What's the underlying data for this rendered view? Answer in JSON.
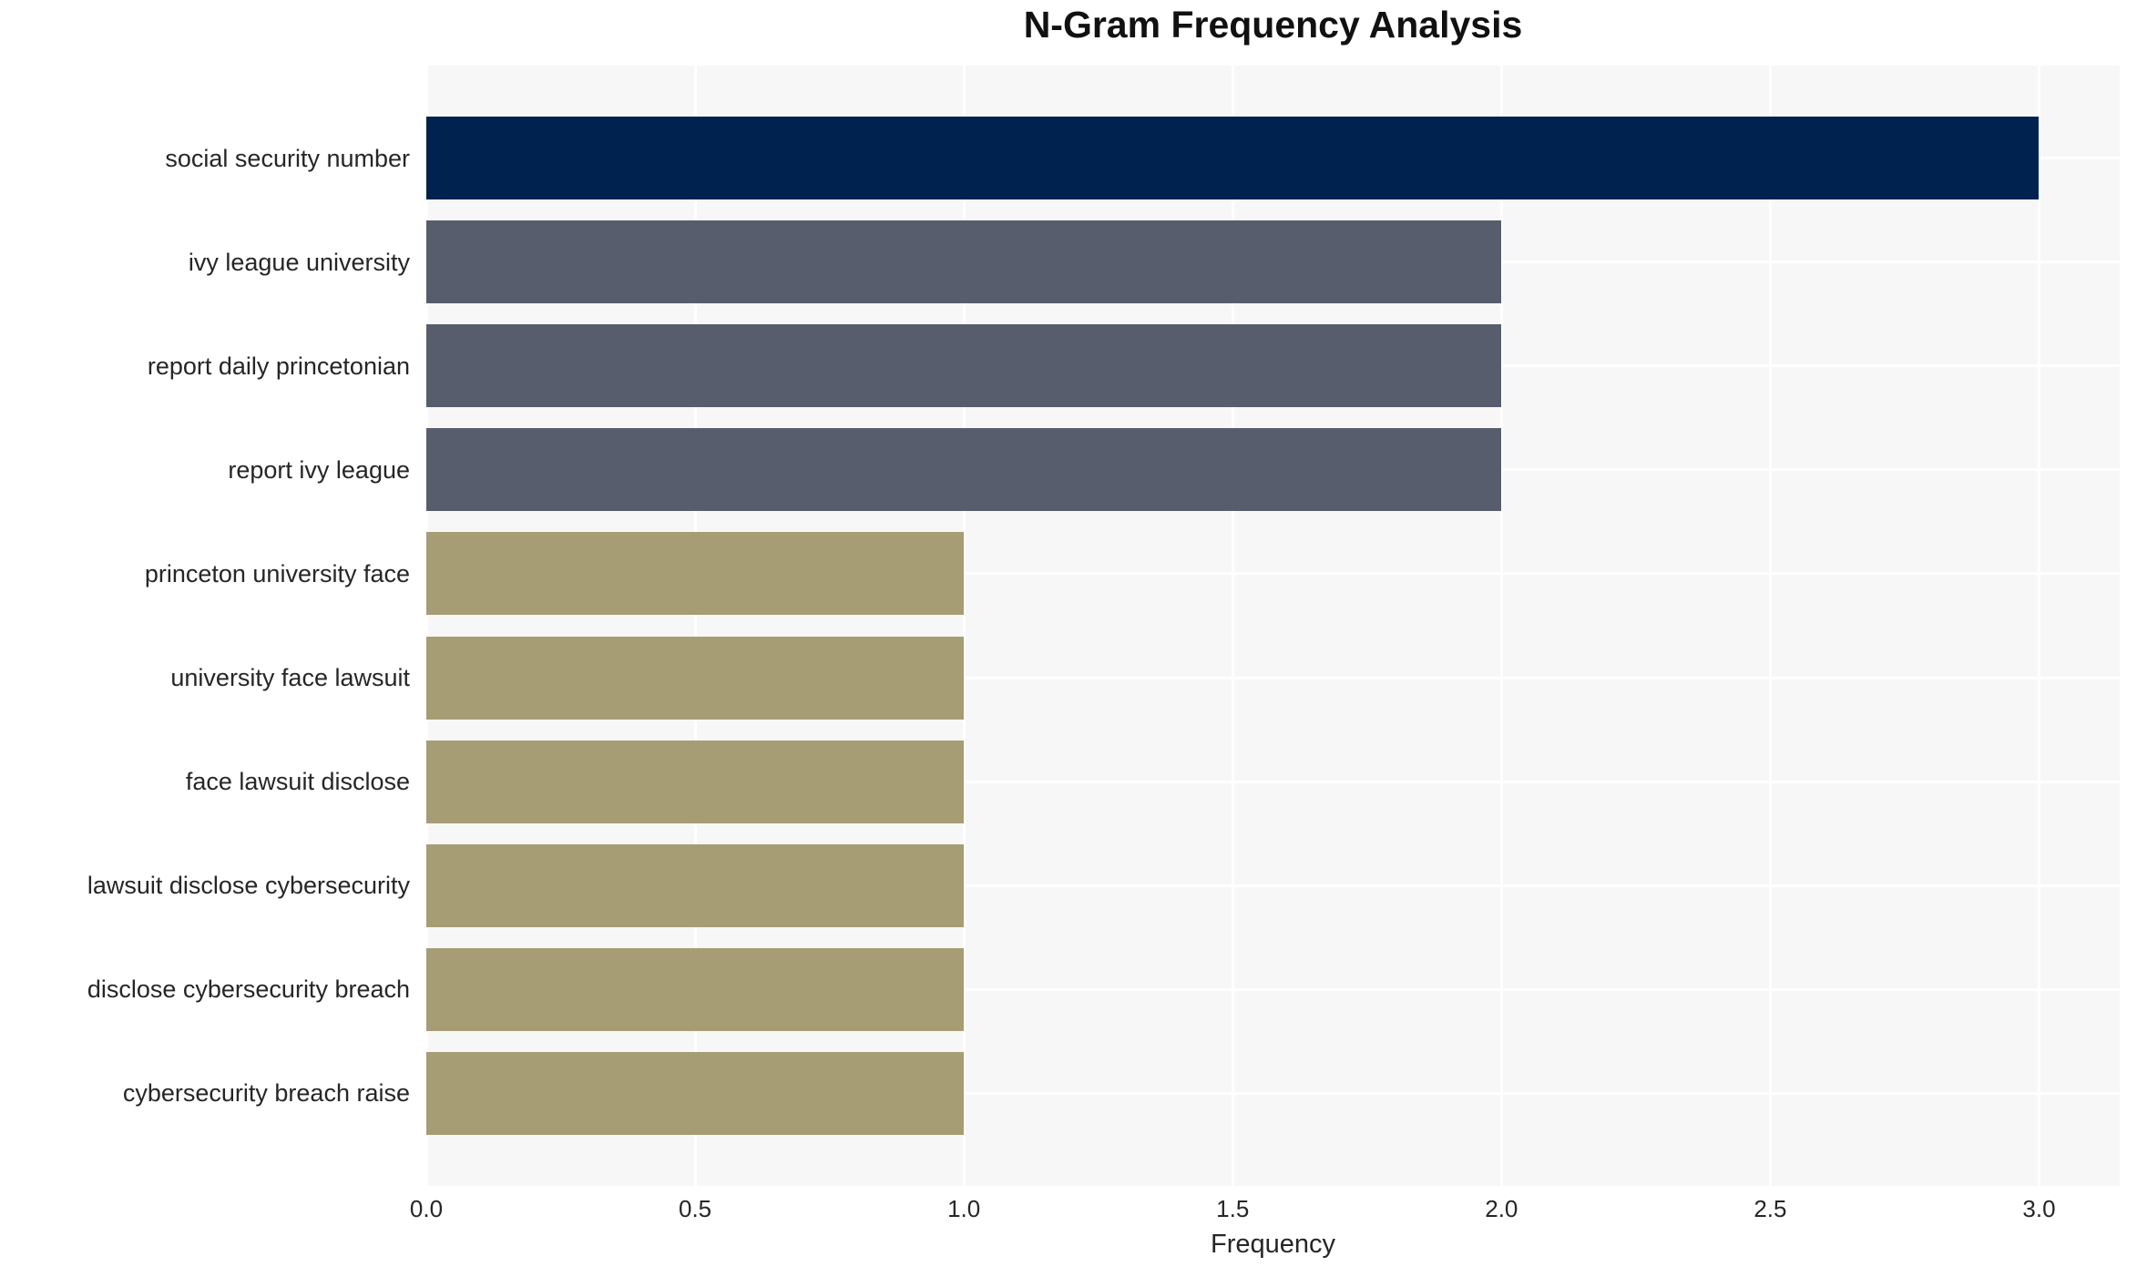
{
  "chart_data": {
    "type": "bar",
    "orientation": "horizontal",
    "title": "N-Gram Frequency Analysis",
    "xlabel": "Frequency",
    "ylabel": "",
    "categories": [
      "social security number",
      "ivy league university",
      "report daily princetonian",
      "report ivy league",
      "princeton university face",
      "university face lawsuit",
      "face lawsuit disclose",
      "lawsuit disclose cybersecurity",
      "disclose cybersecurity breach",
      "cybersecurity breach raise"
    ],
    "values": [
      3,
      2,
      2,
      2,
      1,
      1,
      1,
      1,
      1,
      1
    ],
    "bar_colors": [
      "#00224e",
      "#575d6d",
      "#575d6d",
      "#575d6d",
      "#a69d75",
      "#a69d75",
      "#a69d75",
      "#a69d75",
      "#a69d75",
      "#a69d75"
    ],
    "xlim": [
      0,
      3.15
    ],
    "xticks": [
      0,
      0.5,
      1,
      1.5,
      2,
      2.5,
      3
    ],
    "xtick_labels": [
      "0.0",
      "0.5",
      "1.0",
      "1.5",
      "2.0",
      "2.5",
      "3.0"
    ],
    "grid": true,
    "legend": false,
    "colors": {
      "figure_bg": "#ffffff",
      "plot_bg": "#f7f7f7",
      "gridline": "#ffffff",
      "tick_text": "#262626",
      "title_text": "#111111"
    }
  }
}
